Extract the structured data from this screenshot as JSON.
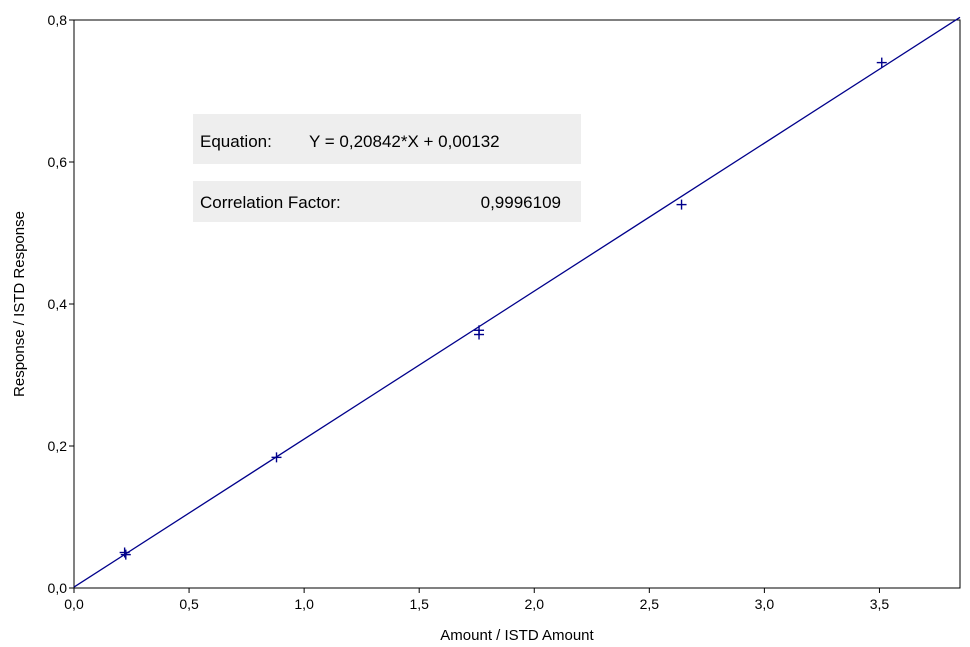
{
  "chart_data": {
    "type": "scatter",
    "xlabel": "Amount / ISTD Amount",
    "ylabel": "Response / ISTD Response",
    "xlim": [
      0,
      3.85
    ],
    "ylim": [
      0,
      0.8
    ],
    "x_ticks": [
      "0,0",
      "0,5",
      "1,0",
      "1,5",
      "2,0",
      "2,5",
      "3,0",
      "3,5"
    ],
    "y_ticks": [
      "0,0",
      "0,2",
      "0,4",
      "0,6",
      "0,8"
    ],
    "x_tick_values": [
      0,
      0.5,
      1.0,
      1.5,
      2.0,
      2.5,
      3.0,
      3.5
    ],
    "y_tick_values": [
      0,
      0.2,
      0.4,
      0.6,
      0.8
    ],
    "points": [
      {
        "x": 0.22,
        "y": 0.05
      },
      {
        "x": 0.225,
        "y": 0.047
      },
      {
        "x": 0.88,
        "y": 0.184
      },
      {
        "x": 1.76,
        "y": 0.363
      },
      {
        "x": 1.76,
        "y": 0.357
      },
      {
        "x": 2.64,
        "y": 0.54
      },
      {
        "x": 3.51,
        "y": 0.74
      }
    ],
    "fit": {
      "slope": 0.20842,
      "intercept": 0.00132
    },
    "color": "#00008b",
    "grid": false
  },
  "info": {
    "equation_label": "Equation:",
    "equation_text": "Y = 0,20842*X + 0,00132",
    "correlation_label": "Correlation Factor:",
    "correlation_value": "0,9996109",
    "box_color": "#eeeeee"
  }
}
